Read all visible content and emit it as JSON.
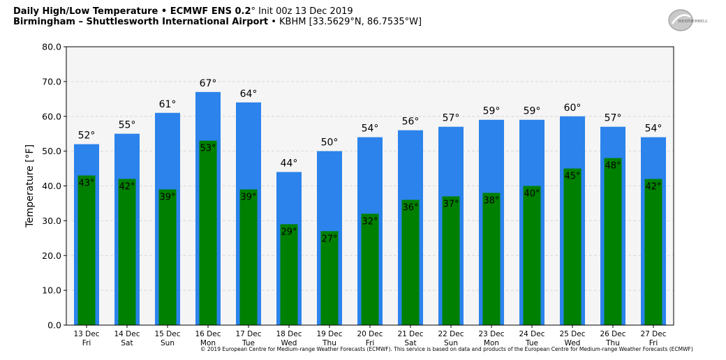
{
  "header": {
    "title_bold": "Daily High/Low Temperature • ECMWF ENS 0.2",
    "title_deg": "°",
    "title_init": "Init 00z 13 Dec 2019",
    "subtitle_bold": "Birmingham – Shuttlesworth International Airport",
    "subtitle_rest": "• KBHM [33.5629°N, 86.7535°W]"
  },
  "logo": {
    "text": "WEATHERBELL",
    "icon": "weatherbell-logo"
  },
  "copyright": "© 2019 European Centre for Medium-range Weather Forecasts (ECMWF). This service is based on data and products of the European Centre for Medium-range Weather Forecasts (ECMWF)",
  "colors": {
    "high": "#2b83eb",
    "low": "#008000",
    "plot_bg": "#f5f5f5",
    "grid": "#d8d8d8"
  },
  "chart_data": {
    "type": "bar",
    "ylabel": "Temperature [°F]",
    "ylim": [
      0,
      80
    ],
    "yticks": [
      "0.0",
      "10.0",
      "20.0",
      "30.0",
      "40.0",
      "50.0",
      "60.0",
      "70.0",
      "80.0"
    ],
    "grid": true,
    "categories": [
      "13 Dec",
      "14 Dec",
      "15 Dec",
      "16 Dec",
      "17 Dec",
      "18 Dec",
      "19 Dec",
      "20 Dec",
      "21 Dec",
      "22 Dec",
      "23 Dec",
      "24 Dec",
      "25 Dec",
      "26 Dec",
      "27 Dec"
    ],
    "weekdays": [
      "Fri",
      "Sat",
      "Sun",
      "Mon",
      "Tue",
      "Wed",
      "Thu",
      "Fri",
      "Sat",
      "Sun",
      "Mon",
      "Tue",
      "Wed",
      "Thu",
      "Fri"
    ],
    "series": [
      {
        "key": "high",
        "values": [
          52,
          55,
          61,
          67,
          64,
          44,
          50,
          54,
          56,
          57,
          59,
          59,
          60,
          57,
          54
        ],
        "labels": [
          "52°",
          "55°",
          "61°",
          "67°",
          "64°",
          "44°",
          "50°",
          "54°",
          "56°",
          "57°",
          "59°",
          "59°",
          "60°",
          "57°",
          "54°"
        ]
      },
      {
        "key": "low",
        "values": [
          43,
          42,
          39,
          53,
          39,
          29,
          27,
          32,
          36,
          37,
          38,
          40,
          45,
          48,
          42
        ],
        "labels": [
          "43°",
          "42°",
          "39°",
          "53°",
          "39°",
          "29°",
          "27°",
          "32°",
          "36°",
          "37°",
          "38°",
          "40°",
          "45°",
          "48°",
          "42°"
        ]
      }
    ]
  }
}
